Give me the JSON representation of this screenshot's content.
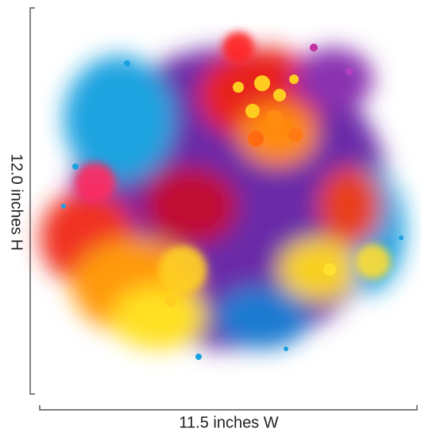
{
  "dimensions": {
    "height": "12.0 inches H",
    "width": "11.5 inches W"
  }
}
